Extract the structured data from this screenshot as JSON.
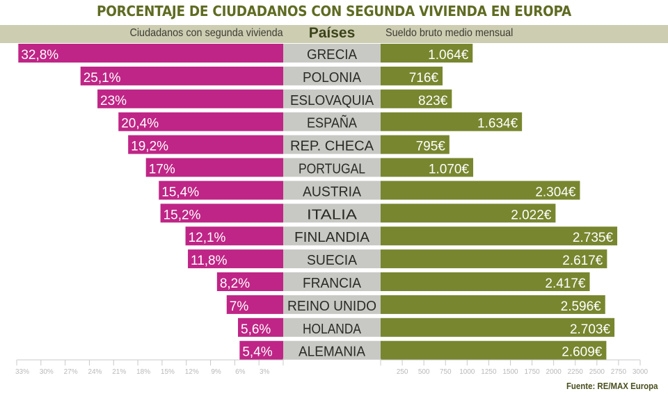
{
  "colors": {
    "title": "#5f6b22",
    "header_band": "#cdcdb2",
    "left_bar": "#bf2586",
    "right_bar": "#78862f",
    "country_band": "#c8c8c4",
    "axis": "#c8c8c8"
  },
  "chart_data": {
    "type": "bar",
    "subtype": "diverging-horizontal-bar",
    "title": "PORCENTAJE DE CIUDADANOS CON SEGUNDA VIVIENDA EN EUROPA",
    "categories_header": "Países",
    "categories": [
      "GRECIA",
      "POLONIA",
      "ESLOVAQUIA",
      "ESPAÑA",
      "REP. CHECA",
      "PORTUGAL",
      "AUSTRIA",
      "ITALIA",
      "FINLANDIA",
      "SUECIA",
      "FRANCIA",
      "REINO UNIDO",
      "HOLANDA",
      "ALEMANIA"
    ],
    "series": [
      {
        "name": "Ciudadanos con segunda vivienda",
        "unit": "%",
        "direction": "left",
        "values": [
          32.8,
          25.1,
          23,
          20.4,
          19.2,
          17,
          15.4,
          15.2,
          12.1,
          11.8,
          8.2,
          7,
          5.6,
          5.4
        ],
        "labels": [
          "32,8%",
          "25,1%",
          "23%",
          "20,4%",
          "19,2%",
          "17%",
          "15,4%",
          "15,2%",
          "12,1%",
          "11,8%",
          "8,2%",
          "7%",
          "5,6%",
          "5,4%"
        ],
        "axis_range": [
          0,
          33
        ],
        "ticks": [
          33,
          30,
          27,
          24,
          21,
          18,
          15,
          12,
          9,
          6,
          3
        ],
        "tick_labels": [
          "33%",
          "30%",
          "27%",
          "24%",
          "21%",
          "18%",
          "15%",
          "12%",
          "9%",
          "6%",
          "3%"
        ]
      },
      {
        "name": "Sueldo bruto medio mensual",
        "unit": "€",
        "direction": "right",
        "values": [
          1064,
          716,
          823,
          1634,
          795,
          1070,
          2304,
          2022,
          2735,
          2617,
          2417,
          2596,
          2703,
          2609
        ],
        "labels": [
          "1.064€",
          "716€",
          "823€",
          "1.634€",
          "795€",
          "1.070€",
          "2.304€",
          "2.022€",
          "2.735€",
          "2.617€",
          "2.417€",
          "2.596€",
          "2.703€",
          "2.609€"
        ],
        "axis_range": [
          0,
          3000
        ],
        "ticks": [
          250,
          500,
          750,
          1000,
          1250,
          1500,
          1750,
          2000,
          2250,
          2500,
          2750,
          3000
        ],
        "tick_labels": [
          "250",
          "500",
          "750",
          "1000",
          "1250",
          "1500",
          "1750",
          "2000",
          "2250",
          "2500",
          "2750",
          "3000"
        ]
      }
    ],
    "grid": false,
    "legend": "none",
    "source": "Fuente: RE/MAX Europa"
  }
}
